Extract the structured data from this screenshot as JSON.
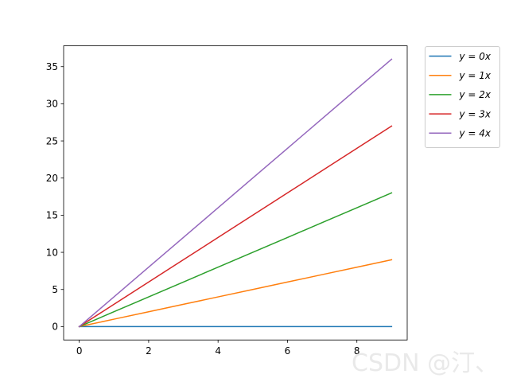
{
  "chart_data": {
    "type": "line",
    "x": [
      0,
      1,
      2,
      3,
      4,
      5,
      6,
      7,
      8,
      9
    ],
    "series": [
      {
        "name": "y = 0x",
        "color": "#1f77b4",
        "values": [
          0,
          0,
          0,
          0,
          0,
          0,
          0,
          0,
          0,
          0
        ]
      },
      {
        "name": "y = 1x",
        "color": "#ff7f0e",
        "values": [
          0,
          1,
          2,
          3,
          4,
          5,
          6,
          7,
          8,
          9
        ]
      },
      {
        "name": "y = 2x",
        "color": "#2ca02c",
        "values": [
          0,
          2,
          4,
          6,
          8,
          10,
          12,
          14,
          16,
          18
        ]
      },
      {
        "name": "y = 3x",
        "color": "#d62728",
        "values": [
          0,
          3,
          6,
          9,
          12,
          15,
          18,
          21,
          24,
          27
        ]
      },
      {
        "name": "y = 4x",
        "color": "#9467bd",
        "values": [
          0,
          4,
          8,
          12,
          16,
          20,
          24,
          28,
          32,
          36
        ]
      }
    ],
    "xticks": [
      0,
      2,
      4,
      6,
      8
    ],
    "yticks": [
      0,
      5,
      10,
      15,
      20,
      25,
      30,
      35
    ],
    "xlim": [
      -0.45,
      9.45
    ],
    "ylim": [
      -1.8,
      37.8
    ],
    "title": "",
    "xlabel": "",
    "ylabel": "",
    "grid": false,
    "legend_placement": "outside upper right"
  },
  "watermark": "CSDN @汀、"
}
